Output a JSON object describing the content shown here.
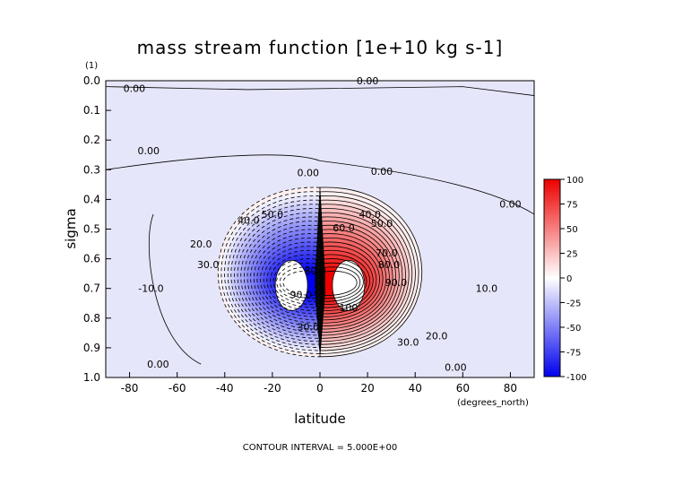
{
  "chart_data": {
    "type": "heatmap",
    "title": "mass stream function [1e+10 kg s-1]",
    "xlabel": "latitude",
    "ylabel": "sigma",
    "x_units": "(degrees_north)",
    "y_units": "(1)",
    "footer": "CONTOUR INTERVAL = 5.000E+00",
    "xlim": [
      -90,
      90
    ],
    "ylim": [
      1.0,
      0.0
    ],
    "x_ticks": [
      "-80",
      "-60",
      "-40",
      "-20",
      "0",
      "20",
      "40",
      "60",
      "80"
    ],
    "y_ticks": [
      "0.0",
      "0.1",
      "0.2",
      "0.3",
      "0.4",
      "0.5",
      "0.6",
      "0.7",
      "0.8",
      "0.9",
      "1.0"
    ],
    "colorbar": {
      "range": [
        -100,
        100
      ],
      "ticks": [
        "100",
        "75",
        "50",
        "25",
        "0",
        "-25",
        "-50",
        "-75",
        "-100"
      ],
      "colors": [
        "#0000ee",
        "#ffffff",
        "#ee0000"
      ]
    },
    "contour_interval": 5.0,
    "cells": [
      {
        "name": "southern-cell",
        "center_lat": -12,
        "center_sigma": 0.69,
        "peak": -100,
        "lat_half_width": 32,
        "sigma_low_half": 0.33,
        "sigma_high_half": 0.24
      },
      {
        "name": "northern-cell",
        "center_lat": 12,
        "center_sigma": 0.69,
        "peak": 100,
        "lat_half_width": 32,
        "sigma_low_half": 0.33,
        "sigma_high_half": 0.24
      }
    ],
    "contour_labels": [
      {
        "text": "0.00",
        "lat": -78,
        "sigma": 0.025
      },
      {
        "text": "0.00",
        "lat": 20,
        "sigma": 0.0
      },
      {
        "text": "0.00",
        "lat": -72,
        "sigma": 0.235
      },
      {
        "text": "0.00",
        "lat": -5,
        "sigma": 0.31
      },
      {
        "text": "0.00",
        "lat": 26,
        "sigma": 0.305
      },
      {
        "text": "0.00",
        "lat": 80,
        "sigma": 0.415
      },
      {
        "text": "40.0",
        "lat": -30,
        "sigma": 0.47
      },
      {
        "text": "50.0",
        "lat": -20,
        "sigma": 0.45
      },
      {
        "text": "20.0",
        "lat": -50,
        "sigma": 0.55
      },
      {
        "text": "30.0",
        "lat": -47,
        "sigma": 0.62
      },
      {
        "text": "-10.0",
        "lat": -71,
        "sigma": 0.7
      },
      {
        "text": "60.0",
        "lat": 10,
        "sigma": 0.495
      },
      {
        "text": "40.0",
        "lat": 21,
        "sigma": 0.45
      },
      {
        "text": "50.0",
        "lat": 26,
        "sigma": 0.48
      },
      {
        "text": "70.0",
        "lat": 28,
        "sigma": 0.58
      },
      {
        "text": "80.0",
        "lat": 29,
        "sigma": 0.62
      },
      {
        "text": "90.0",
        "lat": 32,
        "sigma": 0.68
      },
      {
        "text": "10.0",
        "lat": 70,
        "sigma": 0.7
      },
      {
        "text": "100",
        "lat": 12,
        "sigma": 0.765
      },
      {
        "text": "30.0",
        "lat": 37,
        "sigma": 0.88
      },
      {
        "text": "20.0",
        "lat": 49,
        "sigma": 0.86
      },
      {
        "text": "0.00",
        "lat": -68,
        "sigma": 0.955
      },
      {
        "text": "0.00",
        "lat": 57,
        "sigma": 0.965
      },
      {
        "text": "90.0",
        "lat": -8,
        "sigma": 0.72
      },
      {
        "text": "80.0",
        "lat": -2,
        "sigma": 0.64
      },
      {
        "text": "30.0",
        "lat": -5,
        "sigma": 0.83
      }
    ]
  }
}
